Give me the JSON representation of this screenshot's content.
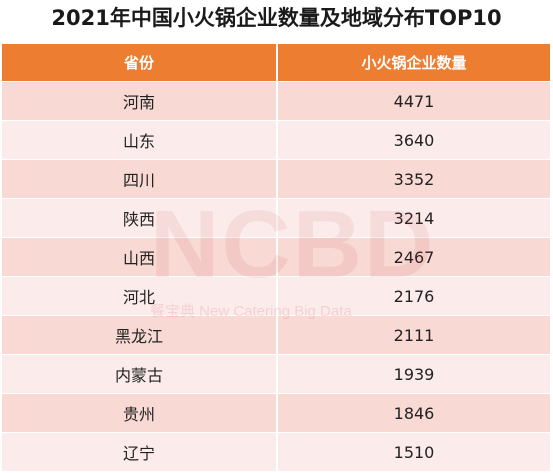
{
  "chart_data": {
    "type": "table",
    "title": "2021年中国小火锅企业数量及地域分布TOP10",
    "columns": [
      "省份",
      "小火锅企业数量"
    ],
    "categories": [
      "河南",
      "山东",
      "四川",
      "陕西",
      "山西",
      "河北",
      "黑龙江",
      "内蒙古",
      "贵州",
      "辽宁"
    ],
    "values": [
      4471,
      3640,
      3352,
      3214,
      2467,
      2176,
      2111,
      1939,
      1846,
      1510
    ]
  },
  "watermark": {
    "logo": "NCBD",
    "caption": "餐宝典 New Catering Big Data"
  },
  "colors": {
    "header_bg": "#ed7d31",
    "row_odd": "#f8d9d4",
    "row_even": "#fbeceb"
  }
}
